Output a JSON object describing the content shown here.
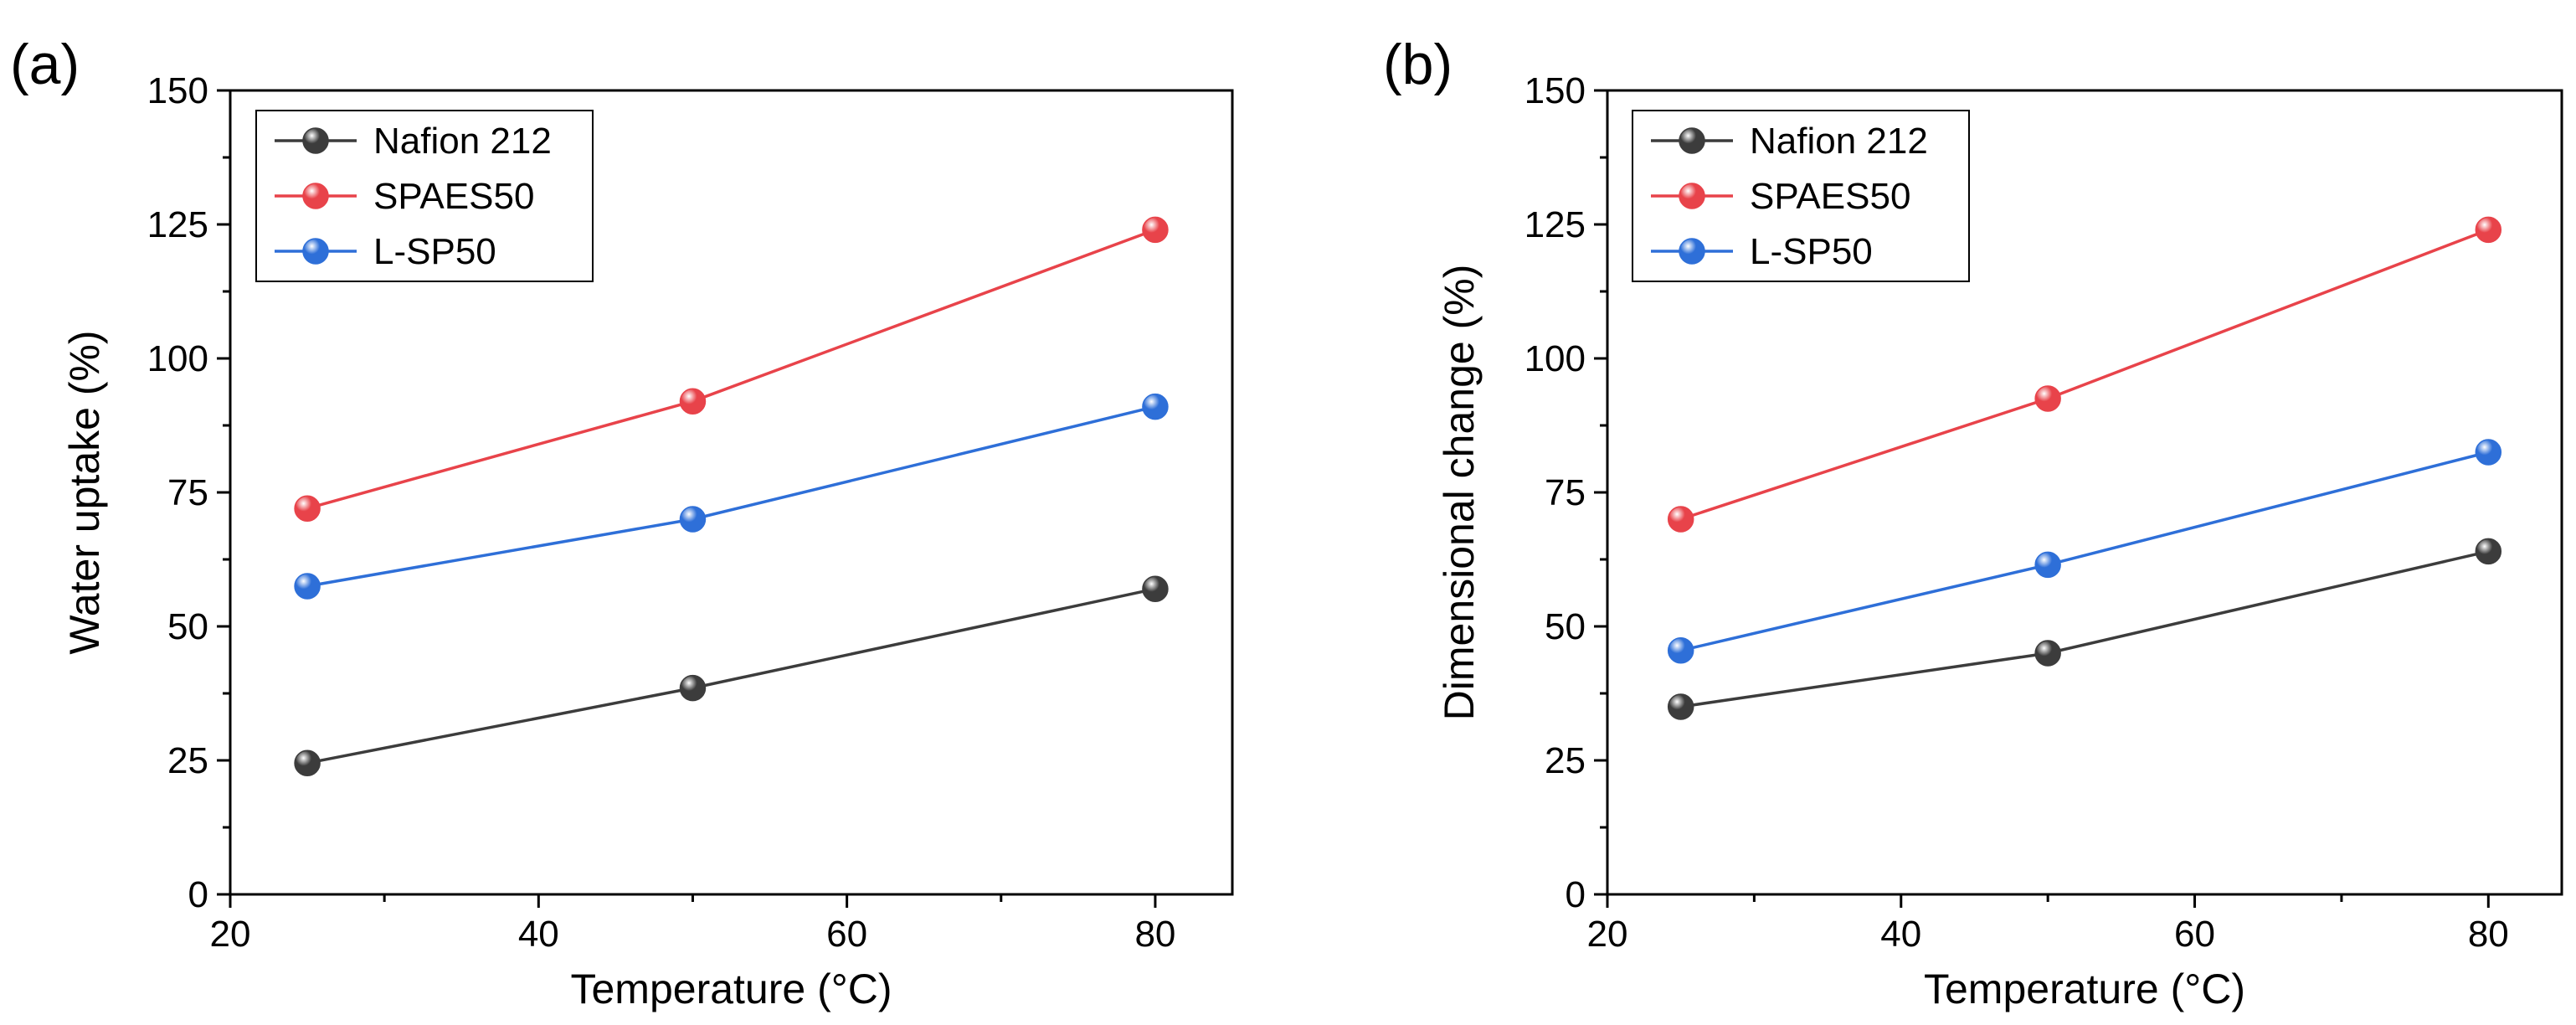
{
  "colors": {
    "nafion": "#3c3c3c",
    "spaes": "#e8434a",
    "lsp": "#2e6fd8",
    "axis": "#000000",
    "background": "#ffffff"
  },
  "chart_data": [
    {
      "panel_label": "(a)",
      "type": "line",
      "xlabel": "Temperature (°C)",
      "ylabel": "Water uptake (%)",
      "xlim": [
        20,
        85
      ],
      "ylim": [
        0,
        150
      ],
      "xticks": [
        20,
        40,
        60,
        80
      ],
      "yticks": [
        0,
        25,
        50,
        75,
        100,
        125,
        150
      ],
      "x": [
        25,
        50,
        80
      ],
      "legend_position": "top-left",
      "series": [
        {
          "name": "Nafion 212",
          "color": "#3c3c3c",
          "values": [
            24.5,
            38.5,
            57
          ]
        },
        {
          "name": "SPAES50",
          "color": "#e8434a",
          "values": [
            72,
            92,
            124
          ]
        },
        {
          "name": "L-SP50",
          "color": "#2e6fd8",
          "values": [
            57.5,
            70,
            91
          ]
        }
      ]
    },
    {
      "panel_label": "(b)",
      "type": "line",
      "xlabel": "Temperature (°C)",
      "ylabel": "Dimensional change (%)",
      "xlim": [
        20,
        85
      ],
      "ylim": [
        0,
        150
      ],
      "xticks": [
        20,
        40,
        60,
        80
      ],
      "yticks": [
        0,
        25,
        50,
        75,
        100,
        125,
        150
      ],
      "x": [
        25,
        50,
        80
      ],
      "legend_position": "top-left",
      "series": [
        {
          "name": "Nafion 212",
          "color": "#3c3c3c",
          "values": [
            35,
            45,
            64
          ]
        },
        {
          "name": "SPAES50",
          "color": "#e8434a",
          "values": [
            70,
            92.5,
            124
          ]
        },
        {
          "name": "L-SP50",
          "color": "#2e6fd8",
          "values": [
            45.5,
            61.5,
            82.5
          ]
        }
      ]
    }
  ]
}
